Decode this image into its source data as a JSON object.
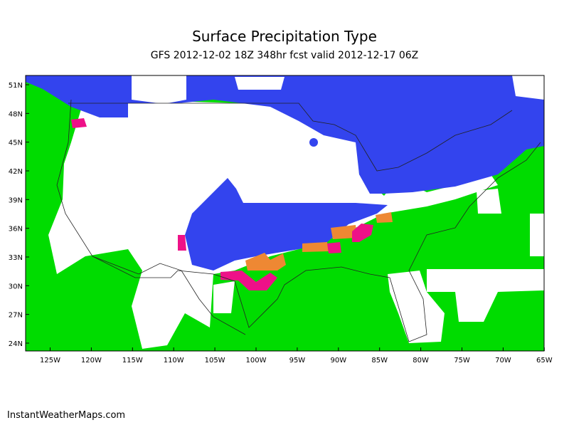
{
  "header": {
    "title": "Surface Precipitation Type",
    "subtitle": "GFS 2012-12-02 18Z 348hr fcst valid 2012-12-17 06Z"
  },
  "map": {
    "lat_labels": [
      "51N",
      "48N",
      "45N",
      "42N",
      "39N",
      "36N",
      "33N",
      "30N",
      "27N",
      "24N"
    ],
    "lon_labels": [
      "125W",
      "120W",
      "115W",
      "110W",
      "105W",
      "100W",
      "95W",
      "90W",
      "85W",
      "80W",
      "75W",
      "70W",
      "65W"
    ]
  },
  "footer": {
    "credit": "InstantWeatherMaps.com"
  }
}
